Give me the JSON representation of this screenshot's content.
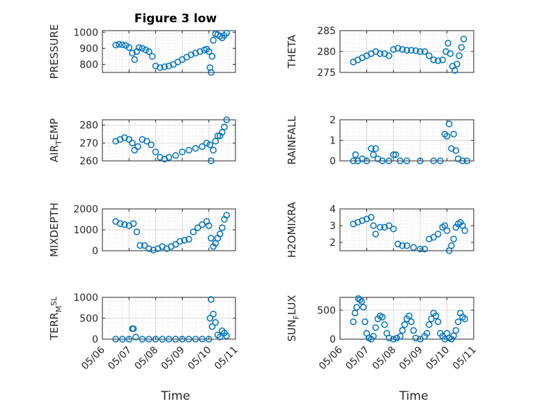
{
  "figure": {
    "title": "Figure 3 low",
    "xlabel": "Time"
  },
  "colors": {
    "marker": "#0072BD",
    "axis": "#262626",
    "grid": "#d9d9d9"
  },
  "chart_data": [
    {
      "type": "scatter",
      "title": "Figure 3 low",
      "ylabel": "PRESSURE",
      "ylabel_parts": [
        [
          "PRESSURE",
          ""
        ]
      ],
      "yticks": [
        800,
        900,
        1000
      ],
      "ylim": [
        750,
        1010
      ],
      "xlim": [
        "05/06",
        "05/11"
      ],
      "xticks": [],
      "grid": true,
      "x": [
        "05/06 12:00",
        "05/06 15:00",
        "05/06 18:00",
        "05/06 21:00",
        "05/07 00:00",
        "05/07 03:00",
        "05/07 05:00",
        "05/07 07:00",
        "05/07 09:00",
        "05/07 12:00",
        "05/07 15:00",
        "05/07 18:00",
        "05/07 21:00",
        "05/08 00:00",
        "05/08 04:00",
        "05/08 08:00",
        "05/08 12:00",
        "05/08 16:00",
        "05/08 20:00",
        "05/09 00:00",
        "05/09 04:00",
        "05/09 08:00",
        "05/09 12:00",
        "05/09 16:00",
        "05/09 20:00",
        "05/09 22:00",
        "05/10 00:00",
        "05/10 01:00",
        "05/10 02:00",
        "05/10 03:00",
        "05/10 04:00",
        "05/10 06:00",
        "05/10 08:00",
        "05/10 10:00",
        "05/10 12:00",
        "05/10 14:00",
        "05/10 16:00"
      ],
      "y": [
        920,
        925,
        922,
        918,
        905,
        870,
        830,
        880,
        905,
        900,
        890,
        880,
        850,
        790,
        780,
        785,
        790,
        800,
        815,
        830,
        845,
        860,
        870,
        880,
        890,
        895,
        880,
        780,
        750,
        850,
        950,
        990,
        985,
        975,
        965,
        980,
        995
      ]
    },
    {
      "type": "scatter",
      "ylabel": "THETA",
      "ylabel_parts": [
        [
          "THETA",
          ""
        ]
      ],
      "yticks": [
        275,
        280,
        285
      ],
      "ylim": [
        275,
        285
      ],
      "xlim": [
        "05/06",
        "05/11"
      ],
      "xticks": [],
      "grid": true,
      "x": [
        "05/06 12:00",
        "05/06 16:00",
        "05/06 20:00",
        "05/07 00:00",
        "05/07 04:00",
        "05/07 08:00",
        "05/07 12:00",
        "05/07 16:00",
        "05/07 20:00",
        "05/08 00:00",
        "05/08 04:00",
        "05/08 08:00",
        "05/08 12:00",
        "05/08 16:00",
        "05/08 20:00",
        "05/09 00:00",
        "05/09 04:00",
        "05/09 08:00",
        "05/09 12:00",
        "05/09 16:00",
        "05/09 20:00",
        "05/09 23:00",
        "05/10 01:00",
        "05/10 03:00",
        "05/10 05:00",
        "05/10 07:00",
        "05/10 09:00",
        "05/10 11:00",
        "05/10 13:00",
        "05/10 15:00"
      ],
      "y": [
        277.5,
        278,
        278.5,
        279,
        279.5,
        280,
        279.5,
        279.5,
        279,
        280.5,
        280.8,
        280.5,
        280.3,
        280.3,
        280.2,
        280,
        280,
        279,
        278,
        277.8,
        278,
        280,
        282,
        279.5,
        276.5,
        275.5,
        277,
        279,
        281,
        283
      ]
    },
    {
      "type": "scatter",
      "ylabel": "AIR_TEMP",
      "ylabel_parts": [
        [
          "AIR",
          ""
        ],
        [
          "T",
          "sub"
        ],
        [
          "EMP",
          ""
        ]
      ],
      "yticks": [
        260,
        270,
        280
      ],
      "ylim": [
        260,
        283
      ],
      "xlim": [
        "05/06",
        "05/11"
      ],
      "xticks": [],
      "grid": true,
      "x": [
        "05/06 12:00",
        "05/06 16:00",
        "05/06 20:00",
        "05/07 00:00",
        "05/07 03:00",
        "05/07 05:00",
        "05/07 08:00",
        "05/07 12:00",
        "05/07 16:00",
        "05/07 20:00",
        "05/08 00:00",
        "05/08 04:00",
        "05/08 08:00",
        "05/08 12:00",
        "05/08 18:00",
        "05/09 00:00",
        "05/09 06:00",
        "05/09 12:00",
        "05/09 18:00",
        "05/09 22:00",
        "05/10 01:00",
        "05/10 02:00",
        "05/10 04:00",
        "05/10 06:00",
        "05/10 08:00",
        "05/10 10:00",
        "05/10 12:00",
        "05/10 14:00",
        "05/10 16:00"
      ],
      "y": [
        271,
        272,
        273,
        272,
        270,
        266,
        268,
        272,
        271,
        269,
        265,
        262,
        261,
        262,
        263,
        265,
        266,
        267,
        268,
        270,
        269,
        260,
        266,
        271,
        274,
        274,
        276,
        279,
        283
      ]
    },
    {
      "type": "scatter",
      "ylabel": "RAINFALL",
      "ylabel_parts": [
        [
          "RAINFALL",
          ""
        ]
      ],
      "yticks": [
        0,
        1,
        2
      ],
      "ylim": [
        0,
        2
      ],
      "xlim": [
        "05/06",
        "05/11"
      ],
      "xticks": [],
      "grid": true,
      "x": [
        "05/06 12:00",
        "05/06 14:00",
        "05/06 16:00",
        "05/06 20:00",
        "05/07 00:00",
        "05/07 04:00",
        "05/07 06:00",
        "05/07 08:00",
        "05/07 10:00",
        "05/07 14:00",
        "05/07 20:00",
        "05/08 00:00",
        "05/08 02:00",
        "05/08 06:00",
        "05/08 12:00",
        "05/09 00:00",
        "05/09 12:00",
        "05/09 18:00",
        "05/09 22:00",
        "05/10 00:00",
        "05/10 02:00",
        "05/10 04:00",
        "05/10 06:00",
        "05/10 08:00",
        "05/10 10:00",
        "05/10 14:00",
        "05/10 18:00"
      ],
      "y": [
        0,
        0.3,
        0,
        0.1,
        0,
        0.6,
        0.3,
        0.6,
        0.1,
        0,
        0,
        0.3,
        0.3,
        0,
        0,
        0,
        0,
        0,
        1.3,
        1.2,
        1.8,
        0.6,
        1.3,
        0.5,
        0.1,
        0,
        0
      ]
    },
    {
      "type": "scatter",
      "ylabel": "MIXDEPTH",
      "ylabel_parts": [
        [
          "MIXDEPTH",
          ""
        ]
      ],
      "yticks": [
        0,
        1000,
        2000
      ],
      "ylim": [
        0,
        2000
      ],
      "xlim": [
        "05/06",
        "05/11"
      ],
      "xticks": [],
      "grid": true,
      "x": [
        "05/06 12:00",
        "05/06 16:00",
        "05/06 20:00",
        "05/07 00:00",
        "05/07 04:00",
        "05/07 07:00",
        "05/07 10:00",
        "05/07 14:00",
        "05/07 18:00",
        "05/07 22:00",
        "05/08 02:00",
        "05/08 06:00",
        "05/08 10:00",
        "05/08 14:00",
        "05/08 18:00",
        "05/08 22:00",
        "05/09 02:00",
        "05/09 06:00",
        "05/09 10:00",
        "05/09 14:00",
        "05/09 18:00",
        "05/09 22:00",
        "05/10 00:00",
        "05/10 02:00",
        "05/10 04:00",
        "05/10 06:00",
        "05/10 08:00",
        "05/10 10:00",
        "05/10 12:00",
        "05/10 14:00",
        "05/10 16:00"
      ],
      "y": [
        1400,
        1300,
        1250,
        1200,
        1300,
        900,
        250,
        250,
        100,
        30,
        100,
        200,
        100,
        200,
        300,
        450,
        500,
        550,
        900,
        1100,
        1250,
        1400,
        1200,
        600,
        200,
        350,
        600,
        800,
        1100,
        1500,
        1700
      ]
    },
    {
      "type": "scatter",
      "ylabel": "H2OMIXRA",
      "ylabel_parts": [
        [
          "H2OMIXRA",
          ""
        ]
      ],
      "yticks": [
        2,
        3,
        4
      ],
      "ylim": [
        1.5,
        4
      ],
      "xlim": [
        "05/06",
        "05/11"
      ],
      "xticks": [],
      "grid": true,
      "x": [
        "05/06 12:00",
        "05/06 16:00",
        "05/06 20:00",
        "05/07 00:00",
        "05/07 04:00",
        "05/07 06:00",
        "05/07 08:00",
        "05/07 12:00",
        "05/07 16:00",
        "05/07 20:00",
        "05/08 00:00",
        "05/08 04:00",
        "05/08 08:00",
        "05/08 12:00",
        "05/08 18:00",
        "05/09 00:00",
        "05/09 04:00",
        "05/09 08:00",
        "05/09 12:00",
        "05/09 16:00",
        "05/09 20:00",
        "05/09 22:00",
        "05/10 00:00",
        "05/10 02:00",
        "05/10 04:00",
        "05/10 06:00",
        "05/10 08:00",
        "05/10 10:00",
        "05/10 12:00",
        "05/10 14:00",
        "05/10 16:00"
      ],
      "y": [
        3.1,
        3.2,
        3.3,
        3.4,
        3.5,
        3.0,
        2.5,
        2.9,
        2.9,
        3.0,
        2.8,
        1.9,
        1.8,
        1.8,
        1.7,
        1.6,
        1.6,
        2.2,
        2.3,
        2.5,
        2.9,
        3.0,
        2.7,
        1.5,
        1.8,
        2.2,
        2.9,
        3.1,
        3.2,
        3.0,
        2.7
      ]
    },
    {
      "type": "scatter",
      "ylabel": "TERR_MSL",
      "ylabel_parts": [
        [
          "TERR",
          ""
        ],
        [
          "M",
          "sub"
        ],
        [
          "SL",
          "sup"
        ]
      ],
      "yticks": [
        0,
        500,
        1000
      ],
      "ylim": [
        0,
        1000
      ],
      "xlim": [
        "05/06",
        "05/11"
      ],
      "xticks": [
        "05/06",
        "05/07",
        "05/08",
        "05/09",
        "05/10",
        "05/11"
      ],
      "xlabel": "Time",
      "grid": true,
      "x": [
        "05/06 12:00",
        "05/06 18:00",
        "05/07 00:00",
        "05/07 03:00",
        "05/07 04:00",
        "05/07 06:00",
        "05/07 12:00",
        "05/07 18:00",
        "05/08 00:00",
        "05/08 06:00",
        "05/08 12:00",
        "05/08 18:00",
        "05/09 00:00",
        "05/09 06:00",
        "05/09 12:00",
        "05/09 18:00",
        "05/10 00:00",
        "05/10 01:00",
        "05/10 02:00",
        "05/10 03:00",
        "05/10 04:00",
        "05/10 06:00",
        "05/10 08:00",
        "05/10 10:00",
        "05/10 12:00",
        "05/10 14:00",
        "05/10 16:00"
      ],
      "y": [
        0,
        0,
        0,
        250,
        250,
        50,
        0,
        0,
        0,
        0,
        0,
        0,
        0,
        0,
        0,
        0,
        0,
        500,
        950,
        300,
        600,
        400,
        100,
        50,
        200,
        150,
        80
      ]
    },
    {
      "type": "scatter",
      "ylabel": "SUN_FLUX",
      "ylabel_parts": [
        [
          "SUN",
          ""
        ],
        [
          "F",
          "sub"
        ],
        [
          "LUX",
          ""
        ]
      ],
      "yticks": [
        0,
        500
      ],
      "ylim": [
        0,
        720
      ],
      "xlim": [
        "05/06",
        "05/11"
      ],
      "xticks": [
        "05/06",
        "05/07",
        "05/08",
        "05/09",
        "05/10",
        "05/11"
      ],
      "xlabel": "Time",
      "grid": true,
      "x": [
        "05/06 12:00",
        "05/06 13:30",
        "05/06 15:00",
        "05/06 16:30",
        "05/06 18:00",
        "05/06 19:30",
        "05/06 21:00",
        "05/06 22:30",
        "05/07 00:00",
        "05/07 02:00",
        "05/07 04:00",
        "05/07 06:00",
        "05/07 08:00",
        "05/07 10:00",
        "05/07 12:00",
        "05/07 14:00",
        "05/07 16:00",
        "05/07 18:00",
        "05/07 20:00",
        "05/08 00:00",
        "05/08 03:00",
        "05/08 06:00",
        "05/08 08:00",
        "05/08 10:00",
        "05/08 12:00",
        "05/08 14:00",
        "05/08 16:00",
        "05/08 18:00",
        "05/08 20:00",
        "05/09 00:00",
        "05/09 04:00",
        "05/09 06:00",
        "05/09 08:00",
        "05/09 10:00",
        "05/09 12:00",
        "05/09 14:00",
        "05/09 16:00",
        "05/09 18:00",
        "05/09 20:00",
        "05/09 22:00",
        "05/10 00:00",
        "05/10 02:00",
        "05/10 04:00",
        "05/10 06:00",
        "05/10 08:00",
        "05/10 10:00",
        "05/10 12:00",
        "05/10 14:00",
        "05/10 16:00"
      ],
      "y": [
        300,
        450,
        550,
        700,
        680,
        650,
        550,
        300,
        100,
        20,
        0,
        50,
        200,
        350,
        400,
        380,
        250,
        100,
        20,
        0,
        20,
        50,
        150,
        250,
        350,
        400,
        300,
        150,
        20,
        0,
        50,
        100,
        250,
        350,
        450,
        400,
        300,
        100,
        50,
        0,
        100,
        20,
        0,
        60,
        150,
        300,
        450,
        380,
        350
      ]
    }
  ]
}
